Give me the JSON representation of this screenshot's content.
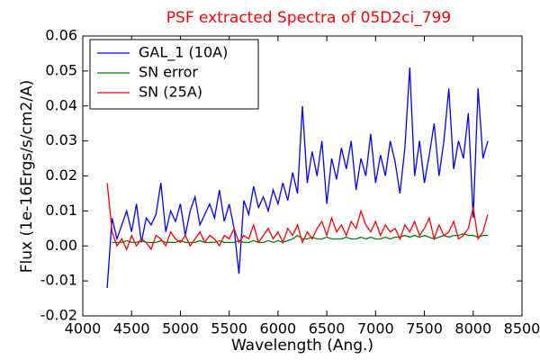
{
  "chart_data": {
    "type": "line",
    "title": "PSF extracted Spectra of 05D2ci_799",
    "title_color": "#ff0000",
    "xlabel": "Wavelength (Ang.)",
    "ylabel": "Flux (1e-16Ergs/s/cm2/A)",
    "legend": "upper left",
    "x": [
      4250,
      4300,
      4350,
      4400,
      4450,
      4500,
      4550,
      4600,
      4650,
      4700,
      4750,
      4800,
      4850,
      4900,
      4950,
      5000,
      5050,
      5100,
      5150,
      5200,
      5250,
      5300,
      5350,
      5400,
      5450,
      5500,
      5550,
      5600,
      5650,
      5700,
      5750,
      5800,
      5850,
      5900,
      5950,
      6000,
      6050,
      6100,
      6150,
      6200,
      6250,
      6300,
      6350,
      6400,
      6450,
      6500,
      6550,
      6600,
      6650,
      6700,
      6750,
      6800,
      6850,
      6900,
      6950,
      7000,
      7050,
      7100,
      7150,
      7200,
      7250,
      7300,
      7350,
      7400,
      7450,
      7500,
      7550,
      7600,
      7650,
      7700,
      7750,
      7800,
      7850,
      7900,
      7950,
      8000,
      8050,
      8100,
      8150
    ],
    "series": [
      {
        "name": "GAL_1 (10A)",
        "color": "#0000ff",
        "values": [
          -0.012,
          0.008,
          0.002,
          0.006,
          0.01,
          0.004,
          0.012,
          0.001,
          0.008,
          0.006,
          0.009,
          0.018,
          0.004,
          0.01,
          0.007,
          0.012,
          0.003,
          0.01,
          0.014,
          0.006,
          0.009,
          0.012,
          0.008,
          0.016,
          0.007,
          0.012,
          0.005,
          -0.008,
          0.013,
          0.009,
          0.017,
          0.011,
          0.014,
          0.01,
          0.016,
          0.012,
          0.018,
          0.013,
          0.021,
          0.015,
          0.04,
          0.018,
          0.027,
          0.02,
          0.03,
          0.012,
          0.025,
          0.019,
          0.028,
          0.022,
          0.03,
          0.016,
          0.025,
          0.02,
          0.032,
          0.018,
          0.026,
          0.02,
          0.03,
          0.024,
          0.015,
          0.028,
          0.051,
          0.02,
          0.03,
          0.018,
          0.026,
          0.035,
          0.02,
          0.03,
          0.045,
          0.022,
          0.03,
          0.025,
          0.038,
          0.008,
          0.045,
          0.025,
          0.03
        ]
      },
      {
        "name": "SN error",
        "color": "#008000",
        "values": [
          null,
          0.001,
          0.001,
          0.001,
          0.0015,
          0.001,
          0.001,
          0.0015,
          0.001,
          0.001,
          0.001,
          0.0015,
          0.001,
          0.001,
          0.001,
          0.0015,
          0.001,
          0.001,
          0.001,
          0.0015,
          0.001,
          0.001,
          0.001,
          0.0015,
          0.001,
          0.001,
          0.001,
          0.0015,
          0.001,
          0.001,
          0.0015,
          0.001,
          0.001,
          0.0015,
          0.001,
          0.0015,
          0.001,
          0.0015,
          0.002,
          0.003,
          0.002,
          0.002,
          0.0025,
          0.002,
          0.002,
          0.0025,
          0.002,
          0.002,
          0.002,
          0.0025,
          0.002,
          0.002,
          0.0025,
          0.002,
          0.0025,
          0.002,
          0.002,
          0.0025,
          0.002,
          0.0025,
          0.0025,
          0.003,
          0.0025,
          0.003,
          0.0025,
          0.003,
          0.0025,
          0.002,
          0.0025,
          0.003,
          0.0025,
          0.003,
          0.003,
          0.0035,
          0.003,
          0.003,
          0.0025,
          0.003,
          0.003
        ]
      },
      {
        "name": "SN (25A)",
        "color": "#ff0000",
        "values": [
          0.018,
          0.004,
          0.0,
          0.002,
          -0.001,
          0.003,
          0.0,
          0.002,
          0.001,
          -0.001,
          0.003,
          0.002,
          0.0,
          0.004,
          0.002,
          0.001,
          0.003,
          0.0,
          0.002,
          0.004,
          0.001,
          0.003,
          0.002,
          0.0,
          0.003,
          0.002,
          0.005,
          0.001,
          0.003,
          0.002,
          0.006,
          0.001,
          0.003,
          0.005,
          0.002,
          0.004,
          0.001,
          0.005,
          0.003,
          0.006,
          0.001,
          0.004,
          0.002,
          0.005,
          0.007,
          0.003,
          0.008,
          0.004,
          0.006,
          0.003,
          0.007,
          0.005,
          0.01,
          0.006,
          0.004,
          0.007,
          0.003,
          0.006,
          0.004,
          0.005,
          0.002,
          0.006,
          0.004,
          0.007,
          0.003,
          0.005,
          0.008,
          0.002,
          0.006,
          0.003,
          0.004,
          0.007,
          0.002,
          0.003,
          0.005,
          0.011,
          0.002,
          0.004,
          0.009
        ]
      }
    ],
    "xlim": [
      4000,
      8500
    ],
    "xticks": [
      4000,
      4500,
      5000,
      5500,
      6000,
      6500,
      7000,
      7500,
      8000,
      8500
    ],
    "ylim": [
      -0.02,
      0.06
    ],
    "yticks": [
      -0.02,
      -0.01,
      {
        "value": 0,
        "label": "0.00"
      },
      0.01,
      0.02,
      0.03,
      0.04,
      0.05,
      0.06
    ]
  }
}
